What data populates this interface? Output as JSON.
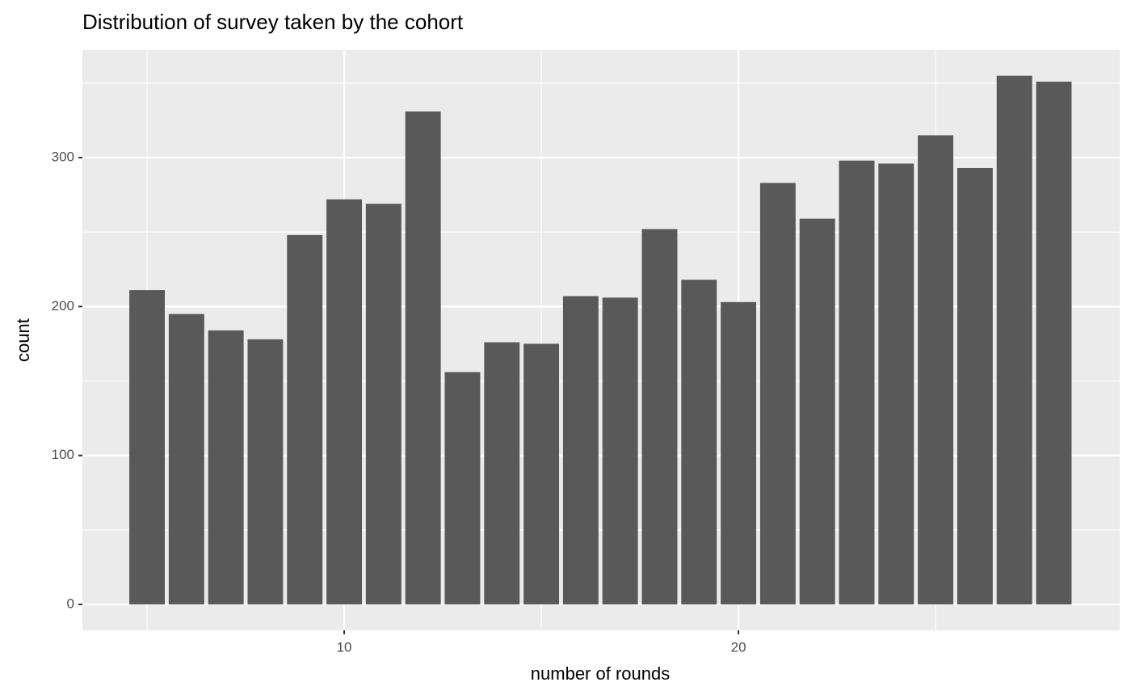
{
  "chart_data": {
    "type": "bar",
    "title": "Distribution of survey taken by the cohort",
    "x_label": "number of rounds",
    "y_label": "count",
    "x": [
      5,
      6,
      7,
      8,
      9,
      10,
      11,
      12,
      13,
      14,
      15,
      16,
      17,
      18,
      19,
      20,
      21,
      22,
      23,
      24,
      25,
      26,
      27,
      28
    ],
    "values": [
      211,
      195,
      184,
      178,
      248,
      272,
      269,
      331,
      156,
      176,
      175,
      207,
      206,
      252,
      218,
      203,
      283,
      259,
      298,
      296,
      315,
      293,
      355,
      351
    ],
    "color": "#595959",
    "xlim": [
      3.36,
      29.67
    ],
    "xticks": [
      10,
      20
    ],
    "ylim": [
      -17.4,
      372.2
    ],
    "yticks": [
      0,
      100,
      200,
      300
    ],
    "grid": true
  }
}
